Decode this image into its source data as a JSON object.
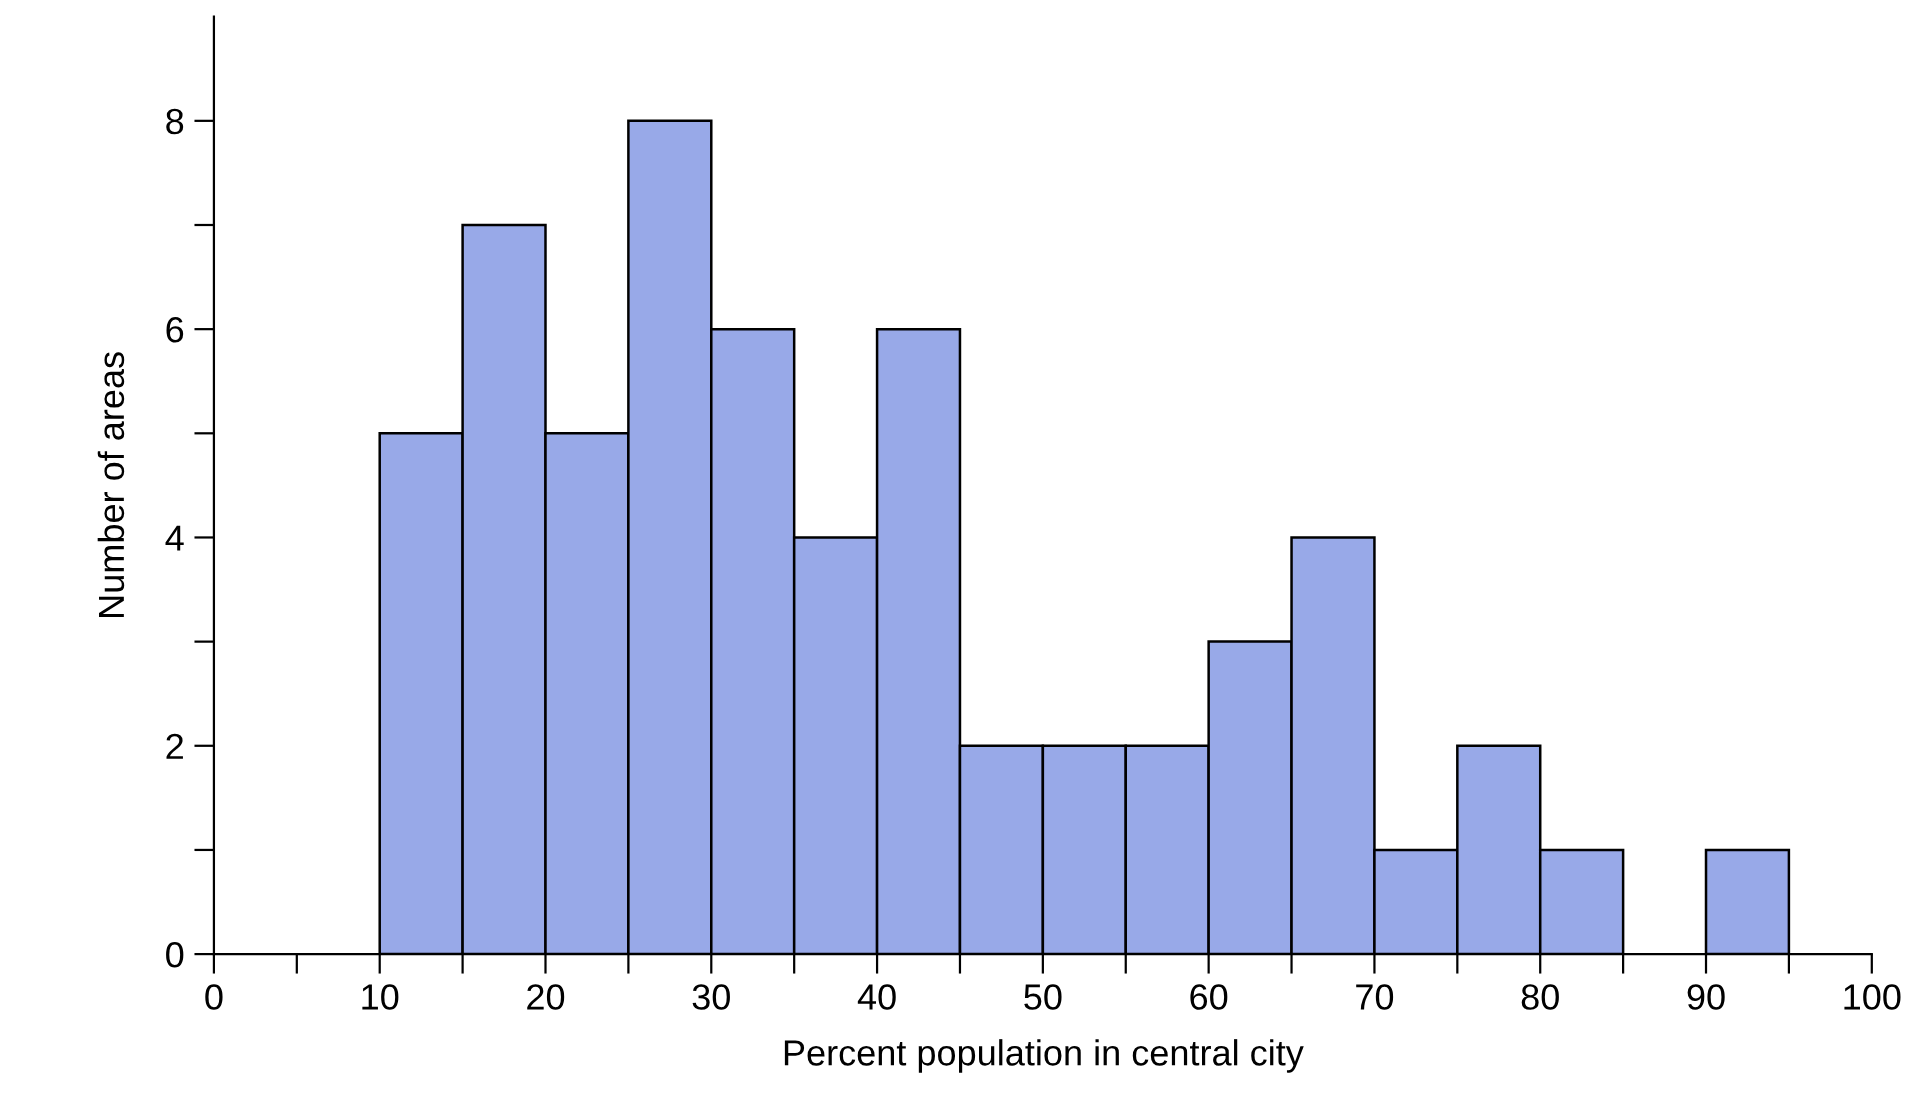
{
  "chart_data": {
    "type": "histogram",
    "xlabel": "Percent population in central city",
    "ylabel": "Number of areas",
    "bins": [
      10,
      15,
      20,
      25,
      30,
      35,
      40,
      45,
      50,
      55,
      60,
      65,
      70,
      75,
      80,
      85,
      90,
      95
    ],
    "values": [
      5,
      7,
      5,
      8,
      6,
      4,
      6,
      2,
      2,
      2,
      3,
      4,
      1,
      2,
      1,
      0,
      1
    ],
    "color": "#98a9e8",
    "xlim": [
      0,
      100
    ],
    "xticks": [
      0,
      {
        "value": 5,
        "label": null
      },
      10,
      {
        "value": 15,
        "label": null
      },
      20,
      {
        "value": 25,
        "label": null
      },
      30,
      {
        "value": 35,
        "label": null
      },
      40,
      {
        "value": 45,
        "label": null
      },
      50,
      {
        "value": 55,
        "label": null
      },
      60,
      {
        "value": 65,
        "label": null
      },
      70,
      {
        "value": 75,
        "label": null
      },
      80,
      {
        "value": 85,
        "label": null
      },
      90,
      {
        "value": 95,
        "label": null
      },
      100
    ],
    "ylim": [
      0,
      9
    ],
    "yticks": [
      0,
      {
        "value": 1,
        "label": null
      },
      2,
      {
        "value": 3,
        "label": null
      },
      4,
      {
        "value": 5,
        "label": null
      },
      6,
      {
        "value": 7,
        "label": null
      },
      8
    ],
    "grid": false
  }
}
